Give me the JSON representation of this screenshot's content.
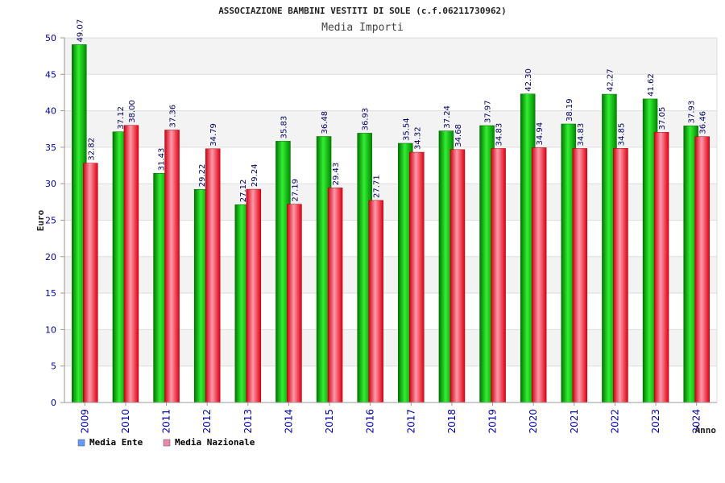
{
  "chart_data": {
    "type": "bar",
    "title": "ASSOCIAZIONE BAMBINI VESTITI DI SOLE (c.f.06211730962)",
    "subtitle": "Media Importi",
    "xlabel": "Anno",
    "ylabel": "Euro",
    "ylim": [
      0,
      50
    ],
    "yticks": [
      "0",
      "5",
      "10",
      "15",
      "20",
      "25",
      "30",
      "35",
      "40",
      "45",
      "50"
    ],
    "grid": true,
    "legend_position": "bottom-left",
    "categories": [
      "2009",
      "2010",
      "2011",
      "2012",
      "2013",
      "2014",
      "2015",
      "2016",
      "2017",
      "2018",
      "2019",
      "2020",
      "2021",
      "2022",
      "2023",
      "2024"
    ],
    "series": [
      {
        "name": "Media Ente",
        "color": "#00cc00",
        "legend_color": "#6699ff",
        "values": [
          49.07,
          37.12,
          31.43,
          29.22,
          27.12,
          35.83,
          36.48,
          36.93,
          35.54,
          37.24,
          37.97,
          42.3,
          38.19,
          42.27,
          41.62,
          37.93
        ],
        "labels": [
          "49.07",
          "37.12",
          "31.43",
          "29.22",
          "27.12",
          "35.83",
          "36.48",
          "36.93",
          "35.54",
          "37.24",
          "37.97",
          "42.30",
          "38.19",
          "42.27",
          "41.62",
          "37.93"
        ]
      },
      {
        "name": "Media Nazionale",
        "color": "#ee1122",
        "legend_color": "#ee88aa",
        "values": [
          32.82,
          38.0,
          37.36,
          34.79,
          29.24,
          27.19,
          29.43,
          27.71,
          34.32,
          34.68,
          34.83,
          34.94,
          34.83,
          34.85,
          37.05,
          36.46
        ],
        "labels": [
          "32.82",
          "38.00",
          "37.36",
          "34.79",
          "29.24",
          "27.19",
          "29.43",
          "27.71",
          "34.32",
          "34.68",
          "34.83",
          "34.94",
          "34.83",
          "34.85",
          "37.05",
          "36.46"
        ]
      }
    ]
  }
}
